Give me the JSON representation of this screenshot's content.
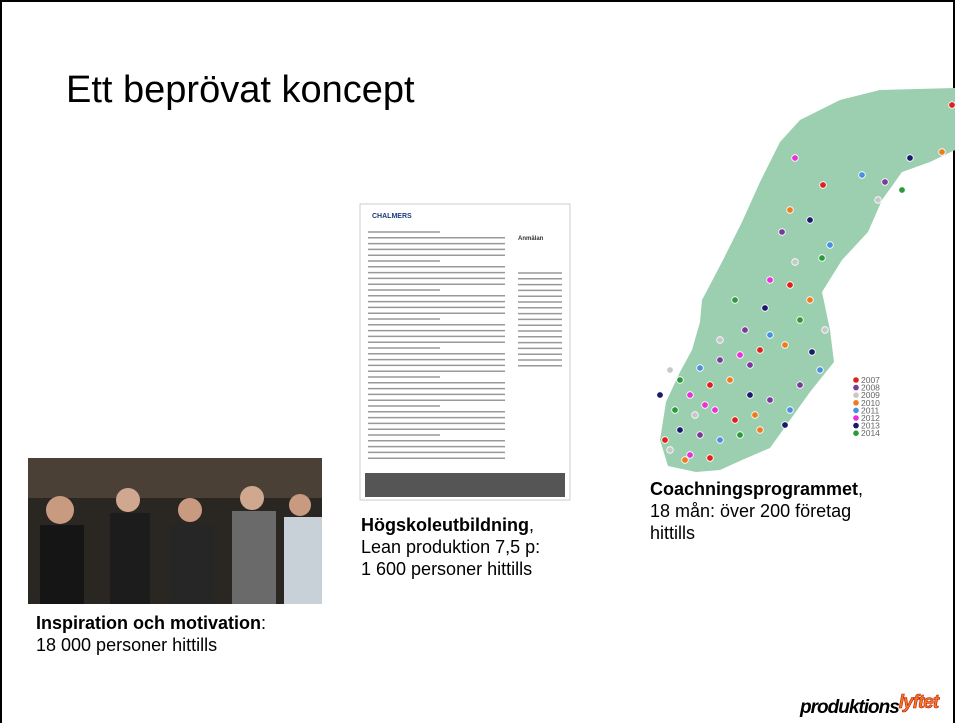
{
  "title": "Ett beprövat koncept",
  "captions": [
    {
      "bold": "Inspiration och motivation",
      "suffix": ":",
      "lines": [
        "18 000 personer hittills"
      ]
    },
    {
      "bold": "Högskoleutbildning",
      "suffix": ",",
      "lines": [
        "Lean produktion 7,5 p:",
        "1 600 personer hittills"
      ]
    },
    {
      "bold": "Coachningsprogrammet",
      "suffix": ",",
      "lines": [
        "18 mån: över 200 företag",
        "hittills"
      ]
    }
  ],
  "map_legend": [
    {
      "label": "2007",
      "color": "#e0201c"
    },
    {
      "label": "2008",
      "color": "#7a3a9a"
    },
    {
      "label": "2009",
      "color": "#c8c8c8"
    },
    {
      "label": "2010",
      "color": "#f07a1c"
    },
    {
      "label": "2011",
      "color": "#4a90e0"
    },
    {
      "label": "2012",
      "color": "#e832d8"
    },
    {
      "label": "2013",
      "color": "#1a1a6a"
    },
    {
      "label": "2014",
      "color": "#2a9a3a"
    }
  ],
  "document_image": {
    "header": "CHALMERS",
    "side_header": "Anmälan"
  },
  "logo": {
    "part1": "produktions",
    "part2": "lyftet"
  }
}
